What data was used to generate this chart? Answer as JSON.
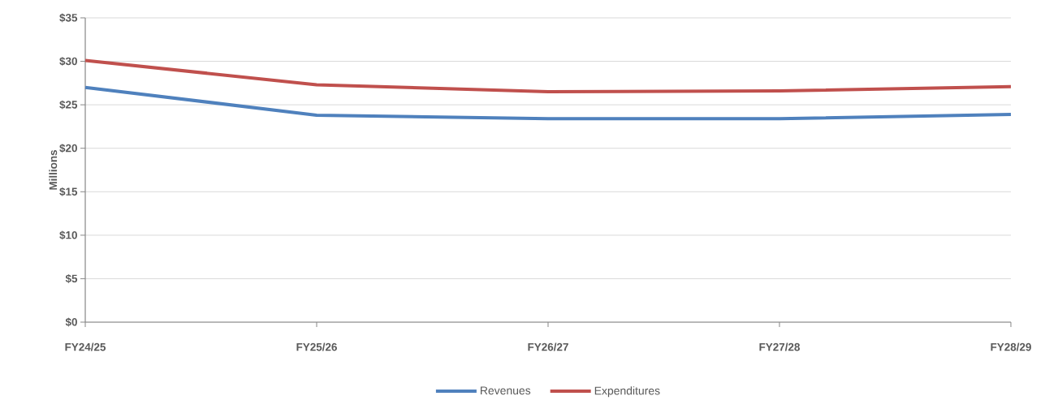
{
  "chart_data": {
    "type": "line",
    "ylabel": "Millions",
    "categories": [
      "FY24/25",
      "FY25/26",
      "FY26/27",
      "FY27/28",
      "FY28/29"
    ],
    "series": [
      {
        "name": "Revenues",
        "color": "#4f81bd",
        "values": [
          27.0,
          23.8,
          23.4,
          23.4,
          23.9
        ]
      },
      {
        "name": "Expenditures",
        "color": "#c0504d",
        "values": [
          30.1,
          27.3,
          26.5,
          26.6,
          27.1
        ]
      }
    ],
    "ylim": [
      0,
      35
    ],
    "yticks": [
      {
        "value": 0,
        "label": "$0"
      },
      {
        "value": 5,
        "label": "$5"
      },
      {
        "value": 10,
        "label": "$10"
      },
      {
        "value": 15,
        "label": "$15"
      },
      {
        "value": 20,
        "label": "$20"
      },
      {
        "value": 25,
        "label": "$25"
      },
      {
        "value": 30,
        "label": "$30"
      },
      {
        "value": 35,
        "label": "$35"
      }
    ],
    "grid": "y",
    "legend": "bottom"
  }
}
